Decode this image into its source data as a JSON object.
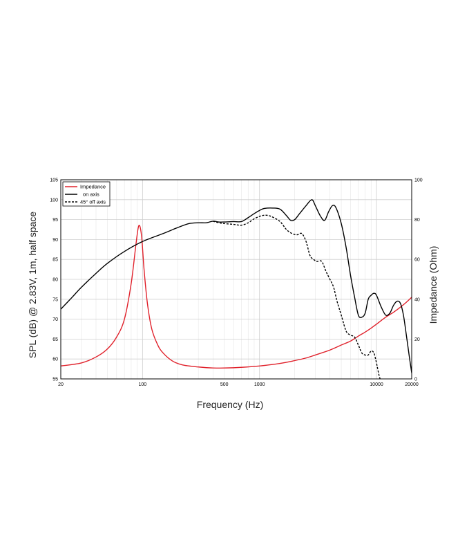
{
  "chart_data": {
    "type": "line",
    "title": "",
    "xlabel": "Frequency (Hz)",
    "ylabel": "SPL (dB) @ 2.83V, 1m, half space",
    "y2label": "Impedance (Ohm)",
    "xscale": "log",
    "xlim": [
      20,
      20000
    ],
    "ylim": [
      55,
      105
    ],
    "y2lim": [
      0,
      100
    ],
    "grid": true,
    "legend_position": "top-left",
    "x_tick_labels": [
      "20",
      "100",
      "500",
      "1000",
      "10000",
      "20000"
    ],
    "x_ticks": [
      20,
      100,
      500,
      1000,
      10000,
      20000
    ],
    "y_ticks": [
      55,
      60,
      65,
      70,
      75,
      80,
      85,
      90,
      95,
      100,
      105
    ],
    "y_tick_labels": [
      "55",
      "60",
      "65",
      "70",
      "75",
      "80",
      "85",
      "90",
      "95",
      "100",
      "105"
    ],
    "y2_ticks": [
      0,
      20,
      40,
      60,
      80,
      100
    ],
    "y2_tick_labels": [
      "0",
      "20",
      "40",
      "60",
      "80",
      "100"
    ],
    "series": [
      {
        "name": "Impedance",
        "axis": "right",
        "color": "#e0202a",
        "dash": "solid",
        "points": [
          [
            20,
            6.5
          ],
          [
            30,
            8
          ],
          [
            40,
            11
          ],
          [
            50,
            15
          ],
          [
            60,
            21
          ],
          [
            70,
            30
          ],
          [
            80,
            48
          ],
          [
            88,
            68
          ],
          [
            93,
            77
          ],
          [
            98,
            72
          ],
          [
            103,
            55
          ],
          [
            110,
            38
          ],
          [
            120,
            25
          ],
          [
            135,
            17
          ],
          [
            150,
            13
          ],
          [
            180,
            9
          ],
          [
            220,
            7
          ],
          [
            300,
            6
          ],
          [
            400,
            5.5
          ],
          [
            600,
            5.6
          ],
          [
            1000,
            6.5
          ],
          [
            1500,
            7.8
          ],
          [
            2000,
            9.2
          ],
          [
            2500,
            10.5
          ],
          [
            3000,
            12
          ],
          [
            4000,
            14.5
          ],
          [
            5000,
            17
          ],
          [
            6000,
            19
          ],
          [
            7000,
            21.5
          ],
          [
            8000,
            23.5
          ],
          [
            9000,
            25.5
          ],
          [
            10000,
            27.5
          ],
          [
            12000,
            31
          ],
          [
            14000,
            33.5
          ],
          [
            16000,
            36
          ],
          [
            18000,
            38.5
          ],
          [
            20000,
            41
          ]
        ]
      },
      {
        "name": "on axis",
        "axis": "left",
        "color": "#000000",
        "dash": "solid",
        "points": [
          [
            20,
            72.5
          ],
          [
            25,
            75.5
          ],
          [
            30,
            78
          ],
          [
            40,
            81.5
          ],
          [
            50,
            84
          ],
          [
            70,
            87
          ],
          [
            100,
            89.5
          ],
          [
            150,
            91.5
          ],
          [
            200,
            93
          ],
          [
            250,
            94
          ],
          [
            300,
            94.2
          ],
          [
            350,
            94.2
          ],
          [
            400,
            94.6
          ],
          [
            450,
            94.4
          ],
          [
            500,
            94.4
          ],
          [
            600,
            94.5
          ],
          [
            700,
            94.5
          ],
          [
            800,
            95.5
          ],
          [
            900,
            96.5
          ],
          [
            1000,
            97.3
          ],
          [
            1100,
            97.8
          ],
          [
            1300,
            97.9
          ],
          [
            1500,
            97.6
          ],
          [
            1700,
            96
          ],
          [
            1850,
            94.8
          ],
          [
            2000,
            95
          ],
          [
            2200,
            96.5
          ],
          [
            2500,
            98.5
          ],
          [
            2800,
            100
          ],
          [
            3000,
            98.5
          ],
          [
            3300,
            96
          ],
          [
            3600,
            94.8
          ],
          [
            3900,
            97
          ],
          [
            4200,
            98.5
          ],
          [
            4500,
            98
          ],
          [
            5000,
            94
          ],
          [
            5500,
            88
          ],
          [
            6000,
            81
          ],
          [
            6500,
            75.5
          ],
          [
            7000,
            71
          ],
          [
            7500,
            70.5
          ],
          [
            8000,
            71.5
          ],
          [
            8500,
            75
          ],
          [
            9000,
            76
          ],
          [
            9500,
            76.5
          ],
          [
            10000,
            76
          ],
          [
            11000,
            73
          ],
          [
            12000,
            71
          ],
          [
            13000,
            71.5
          ],
          [
            14000,
            73.5
          ],
          [
            15000,
            74.5
          ],
          [
            16000,
            74
          ],
          [
            17000,
            71
          ],
          [
            18000,
            66
          ],
          [
            19000,
            61
          ],
          [
            20000,
            56.5
          ]
        ]
      },
      {
        "name": "45° off axis",
        "axis": "left",
        "color": "#000000",
        "dash": "dashed",
        "points": [
          [
            400,
            94.6
          ],
          [
            450,
            94.2
          ],
          [
            500,
            94
          ],
          [
            600,
            93.8
          ],
          [
            700,
            93.6
          ],
          [
            800,
            94.2
          ],
          [
            900,
            95.2
          ],
          [
            1000,
            95.8
          ],
          [
            1100,
            96.1
          ],
          [
            1200,
            96
          ],
          [
            1300,
            95.6
          ],
          [
            1500,
            94.5
          ],
          [
            1700,
            92.5
          ],
          [
            1900,
            91.5
          ],
          [
            2100,
            91.2
          ],
          [
            2300,
            91.5
          ],
          [
            2500,
            89.5
          ],
          [
            2700,
            86
          ],
          [
            2900,
            85
          ],
          [
            3100,
            84.5
          ],
          [
            3400,
            84.5
          ],
          [
            3700,
            82
          ],
          [
            4000,
            80
          ],
          [
            4300,
            78
          ],
          [
            4600,
            74.5
          ],
          [
            5000,
            71
          ],
          [
            5500,
            67
          ],
          [
            6000,
            66
          ],
          [
            6500,
            65.5
          ],
          [
            7000,
            63.5
          ],
          [
            7500,
            61.5
          ],
          [
            8000,
            61
          ],
          [
            8500,
            61
          ],
          [
            9000,
            62
          ],
          [
            9500,
            61.5
          ],
          [
            10000,
            59
          ],
          [
            10500,
            56
          ],
          [
            11000,
            54
          ]
        ]
      }
    ]
  }
}
